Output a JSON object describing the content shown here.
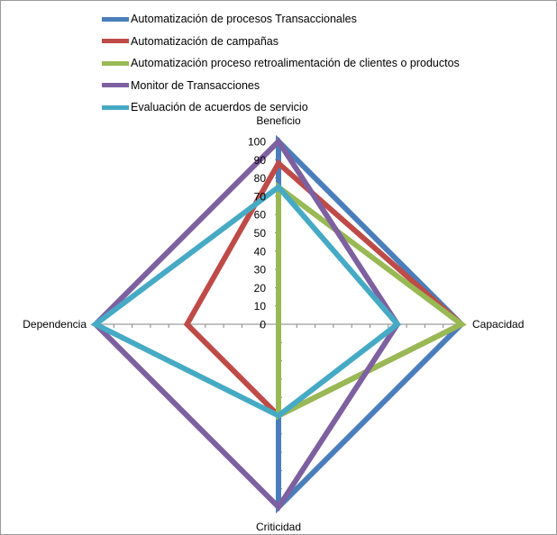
{
  "chart_data": {
    "type": "radar",
    "axes": [
      "Beneficio",
      "Capacidad",
      "Criticidad",
      "Dependencia"
    ],
    "rlim": [
      0,
      100
    ],
    "ticks": [
      0,
      10,
      20,
      30,
      40,
      50,
      60,
      70,
      80,
      90,
      100
    ],
    "grid": false,
    "legend_position": "top",
    "series": [
      {
        "name": "Automatización de procesos Transaccionales",
        "color": "#4a7ebb",
        "values": [
          100,
          100,
          100,
          0
        ]
      },
      {
        "name": "Automatización de campañas",
        "color": "#be4b48",
        "values": [
          88,
          100,
          50,
          50
        ]
      },
      {
        "name": "Automatización proceso retroalimentación de clientes o productos",
        "color": "#98b954",
        "values": [
          75,
          100,
          50,
          0
        ]
      },
      {
        "name": "Monitor de Transacciones",
        "color": "#7d60a0",
        "values": [
          100,
          65,
          100,
          100
        ]
      },
      {
        "name": "Evaluación de acuerdos de servicio",
        "color": "#46aac5",
        "values": [
          75,
          65,
          50,
          100
        ]
      }
    ]
  }
}
